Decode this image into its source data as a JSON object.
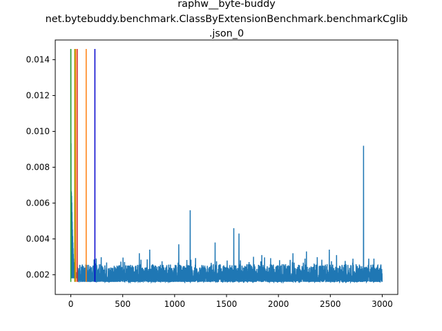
{
  "chart_data": {
    "type": "line",
    "title_lines": [
      "raphw__byte-buddy",
      "net.bytebuddy.benchmark.ClassByExtensionBenchmark.benchmarkCglib",
      ".json_0"
    ],
    "xlabel": "",
    "ylabel": "",
    "xlim": [
      -150,
      3150
    ],
    "ylim": [
      0.0009,
      0.0151
    ],
    "x_ticks": [
      0,
      500,
      1000,
      1500,
      2000,
      2500,
      3000
    ],
    "y_ticks": [
      0.002,
      0.004,
      0.006,
      0.008,
      0.01,
      0.012,
      0.014
    ],
    "y_tick_labels": [
      "0.002",
      "0.004",
      "0.006",
      "0.008",
      "0.010",
      "0.012",
      "0.014"
    ],
    "grid": false,
    "series": [
      {
        "color": "#1f77b4",
        "n_points": 3000,
        "baseline": 0.0016,
        "typical_max": 0.0027,
        "start_values": [
          [
            0,
            0.0146
          ],
          [
            3,
            0.0067
          ],
          [
            6,
            0.0066
          ],
          [
            9,
            0.0063
          ],
          [
            12,
            0.0055
          ],
          [
            15,
            0.0047
          ],
          [
            20,
            0.0038
          ],
          [
            25,
            0.003
          ],
          [
            30,
            0.0025
          ],
          [
            40,
            0.0022
          ],
          [
            60,
            0.0021
          ]
        ],
        "spikes": [
          [
            660,
            0.0032
          ],
          [
            760,
            0.0034
          ],
          [
            1040,
            0.0037
          ],
          [
            1150,
            0.0056
          ],
          [
            1390,
            0.0038
          ],
          [
            1570,
            0.0046
          ],
          [
            1620,
            0.0043
          ],
          [
            1760,
            0.003
          ],
          [
            1840,
            0.0031
          ],
          [
            2140,
            0.0032
          ],
          [
            2270,
            0.0033
          ],
          [
            2490,
            0.0034
          ],
          [
            2560,
            0.0031
          ],
          [
            2820,
            0.0092
          ],
          [
            2870,
            0.0029
          ],
          [
            2920,
            0.0029
          ]
        ]
      }
    ],
    "vertical_lines": [
      {
        "x": 0,
        "color": "#2ca02c"
      },
      {
        "x": 38,
        "color": "#9a9a00"
      },
      {
        "x": 48,
        "color": "#ff7f0e"
      },
      {
        "x": 62,
        "color": "#d62728"
      },
      {
        "x": 148,
        "color": "#ff7f0e"
      },
      {
        "x": 232,
        "color": "#0000cc"
      }
    ]
  }
}
